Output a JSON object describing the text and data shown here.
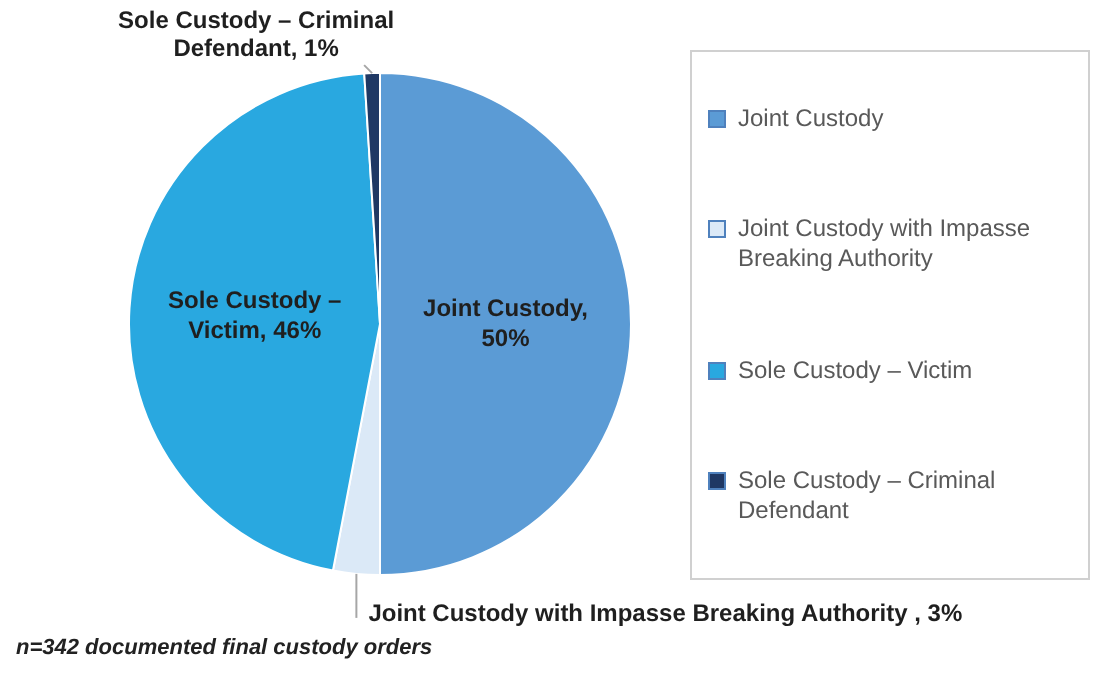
{
  "chart_data": {
    "type": "pie",
    "categories": [
      "Joint Custody",
      "Joint Custody with Impasse Breaking Authority",
      "Sole Custody – Victim",
      "Sole Custody – Criminal Defendant"
    ],
    "values": [
      50,
      3,
      46,
      1
    ],
    "colors": [
      "#5b9bd5",
      "#dbe9f7",
      "#29a8e0",
      "#1f3864"
    ],
    "value_labels": [
      "Joint Custody, 50%",
      "Joint Custody with Impasse Breaking Authority , 3%",
      "Sole Custody – Victim, 46%",
      "Sole Custody – Criminal Defendant, 1%"
    ],
    "legend": "right",
    "annotations": [
      "n=342 documented final custody orders"
    ]
  }
}
